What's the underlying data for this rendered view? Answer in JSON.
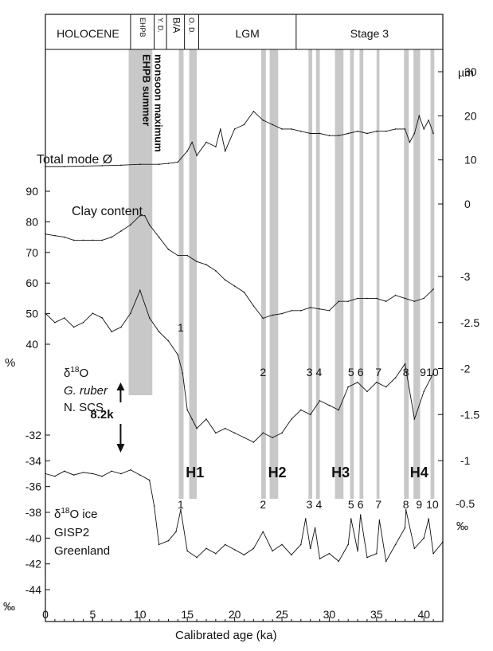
{
  "chart_data": {
    "type": "line",
    "xlabel": "Calibrated age (ka)",
    "xlim": [
      0,
      42
    ],
    "x_ticks": [
      0,
      5,
      10,
      15,
      20,
      25,
      30,
      35,
      40
    ],
    "periods": [
      {
        "label": "HOLOCENE",
        "from": 0,
        "to": 9
      },
      {
        "label": "EHPB",
        "from": 9,
        "to": 11.5
      },
      {
        "label": "Y. D.",
        "from": 11.5,
        "to": 12.8
      },
      {
        "label": "B/A",
        "from": 12.8,
        "to": 14.7
      },
      {
        "label": "O. D.",
        "from": 14.7,
        "to": 16.2
      },
      {
        "label": "LGM",
        "from": 16.2,
        "to": 26.5
      },
      {
        "label": "Stage 3",
        "from": 26.5,
        "to": 42
      }
    ],
    "monsoon_band": {
      "from": 8.8,
      "to": 11.3,
      "label_line1": "EHPB summer",
      "label_line2": "monsoon maximum"
    },
    "event_bands": [
      {
        "from": 14.1,
        "to": 14.6
      },
      {
        "from": 15.2,
        "to": 16.0
      },
      {
        "from": 22.8,
        "to": 23.3
      },
      {
        "from": 23.7,
        "to": 24.6
      },
      {
        "from": 27.8,
        "to": 28.2
      },
      {
        "from": 28.6,
        "to": 29.0
      },
      {
        "from": 30.6,
        "to": 31.5
      },
      {
        "from": 32.2,
        "to": 32.6
      },
      {
        "from": 33.2,
        "to": 33.6
      },
      {
        "from": 35.0,
        "to": 35.3
      },
      {
        "from": 37.9,
        "to": 38.4
      },
      {
        "from": 38.9,
        "to": 39.6
      },
      {
        "from": 40.7,
        "to": 41.1
      }
    ],
    "heinrich_events": [
      {
        "label": "H1",
        "x": 15.8
      },
      {
        "label": "H2",
        "x": 24.5
      },
      {
        "label": "H3",
        "x": 31.2
      },
      {
        "label": "H4",
        "x": 39.5
      }
    ],
    "interstadials_upper": [
      {
        "label": "1",
        "x": 14.3
      },
      {
        "label": "2",
        "x": 23.0
      },
      {
        "label": "3",
        "x": 27.9
      },
      {
        "label": "4",
        "x": 28.9
      },
      {
        "label": "5",
        "x": 32.3
      },
      {
        "label": "6",
        "x": 33.3
      },
      {
        "label": "7",
        "x": 35.2
      },
      {
        "label": "8",
        "x": 38.1
      },
      {
        "label": "9",
        "x": 39.9
      },
      {
        "label": "10",
        "x": 40.9
      }
    ],
    "interstadials_lower": [
      {
        "label": "1",
        "x": 14.3
      },
      {
        "label": "2",
        "x": 23.0
      },
      {
        "label": "3",
        "x": 27.9
      },
      {
        "label": "4",
        "x": 28.9
      },
      {
        "label": "5",
        "x": 32.3
      },
      {
        "label": "6",
        "x": 33.3
      },
      {
        "label": "7",
        "x": 35.2
      },
      {
        "label": "8",
        "x": 38.1
      },
      {
        "label": "9",
        "x": 39.5
      },
      {
        "label": "10",
        "x": 40.9
      }
    ],
    "event_82k": {
      "label": "8.2k",
      "x": 8.2
    },
    "axes": {
      "mode": {
        "unit": "µm",
        "ticks": [
          0,
          10,
          20,
          30
        ]
      },
      "clay": {
        "unit": "%",
        "ticks": [
          40,
          50,
          60,
          70,
          80,
          90
        ]
      },
      "ruber": {
        "unit": "",
        "ticks": [
          -3,
          -2.5,
          -2,
          -1.5,
          -1
        ]
      },
      "gisp": {
        "unit": "‰",
        "ticks": [
          -44,
          -42,
          -40,
          -38,
          -36,
          -34,
          -32
        ]
      },
      "gisp_right": {
        "unit": "‰",
        "ticks": [
          -0.5
        ]
      }
    },
    "series": [
      {
        "name": "Total mode Ø",
        "axis": "mode",
        "x": [
          0,
          2,
          4,
          6,
          8,
          10,
          12,
          13,
          14,
          15,
          15.5,
          16,
          17,
          18,
          18.5,
          19,
          20,
          21,
          22,
          23,
          24,
          25,
          26,
          27,
          28,
          29,
          30,
          31,
          32,
          33,
          34,
          35,
          36,
          37,
          38,
          38.5,
          39,
          39.5,
          40,
          40.5,
          41
        ],
        "y": [
          8.5,
          8.5,
          8.6,
          8.7,
          8.8,
          9,
          9,
          9.2,
          9.5,
          12,
          14,
          11,
          14,
          13,
          17,
          12,
          17,
          18,
          21,
          19,
          18,
          17,
          17,
          16.5,
          16,
          16,
          15.5,
          15.5,
          16,
          16.5,
          16,
          16.5,
          16.5,
          17,
          17,
          14,
          16,
          20,
          17,
          19,
          16
        ]
      },
      {
        "name": "Clay content",
        "axis": "clay",
        "x": [
          0,
          1,
          2,
          3,
          4,
          5,
          6,
          7,
          8,
          9,
          10,
          10.5,
          11,
          12,
          13,
          14,
          15,
          16,
          17,
          18,
          19,
          20,
          21,
          22,
          23,
          24,
          25,
          26,
          27,
          28,
          29,
          30,
          31,
          32,
          33,
          34,
          35,
          36,
          37,
          38,
          39,
          40,
          41
        ],
        "y": [
          76,
          75.5,
          75,
          74,
          74,
          74,
          74,
          75,
          77,
          79,
          82,
          82,
          79,
          75,
          71,
          69,
          69,
          67,
          66,
          64,
          61,
          59,
          57,
          52.5,
          48.5,
          49.5,
          50,
          51,
          51,
          52,
          51.5,
          51,
          54,
          54,
          55,
          55,
          55,
          54,
          56,
          55,
          54,
          55,
          58
        ]
      },
      {
        "name": "δ18O G. ruber N. SCS",
        "axis": "ruber",
        "x": [
          0,
          1,
          2,
          3,
          4,
          5,
          6,
          7,
          8,
          9,
          10,
          11,
          12,
          13,
          14,
          14.5,
          15,
          15.5,
          16,
          17,
          18,
          19,
          20,
          21,
          22,
          23,
          24,
          25,
          26,
          27,
          28,
          29,
          30,
          31,
          32,
          33,
          34,
          35,
          36,
          37,
          38,
          39,
          40,
          41
        ],
        "y": [
          -2.6,
          -2.5,
          -2.55,
          -2.45,
          -2.5,
          -2.6,
          -2.55,
          -2.4,
          -2.45,
          -2.6,
          -2.85,
          -2.55,
          -2.4,
          -2.3,
          -2.15,
          -1.95,
          -1.55,
          -1.45,
          -1.35,
          -1.45,
          -1.3,
          -1.35,
          -1.3,
          -1.25,
          -1.2,
          -1.3,
          -1.25,
          -1.3,
          -1.45,
          -1.55,
          -1.5,
          -1.65,
          -1.6,
          -1.55,
          -1.8,
          -1.85,
          -1.75,
          -1.85,
          -1.8,
          -1.9,
          -2.05,
          -1.45,
          -1.75,
          -1.95
        ]
      },
      {
        "name": "δ18O ice GISP2 Greenland",
        "axis": "gisp",
        "x": [
          0,
          1,
          2,
          3,
          4,
          5,
          6,
          7,
          8,
          9,
          10,
          11,
          11.5,
          12,
          13,
          13.8,
          14.3,
          15,
          16,
          17,
          18,
          19,
          20,
          21,
          22,
          23,
          24,
          25,
          26,
          27,
          27.5,
          28,
          28.5,
          29,
          30,
          31,
          32,
          32.3,
          33,
          33.3,
          34,
          35,
          35.3,
          36,
          37,
          38,
          38.1,
          39,
          40,
          40.5,
          41,
          42
        ],
        "y": [
          -35,
          -35.2,
          -34.8,
          -35.1,
          -34.9,
          -35,
          -35.2,
          -34.8,
          -35,
          -34.7,
          -35.1,
          -35.5,
          -37.5,
          -40.5,
          -40.2,
          -39.5,
          -37.8,
          -41,
          -41.5,
          -40.8,
          -41.2,
          -40.5,
          -40.9,
          -41.3,
          -40.8,
          -39.5,
          -41,
          -40.5,
          -41.3,
          -40.5,
          -38.5,
          -40.8,
          -39.2,
          -41.6,
          -41.2,
          -41.8,
          -40.5,
          -38.5,
          -41,
          -38.2,
          -41.5,
          -41.2,
          -38.6,
          -41.8,
          -40.5,
          -39.2,
          -37.8,
          -40.8,
          -40,
          -38.5,
          -41.2,
          -40.3
        ]
      }
    ],
    "text": {
      "label_mode": "Total mode Ø",
      "label_clay": "Clay content",
      "label_delta_ruber": "δ18O",
      "label_ruber_species": "G. ruber",
      "label_ruber_region": "N. SCS",
      "label_delta_ice": "δ18O ice",
      "label_gisp": "GISP2",
      "label_greenland": "Greenland",
      "unit_mode": "µm",
      "unit_clay": "%",
      "unit_gisp": "‰",
      "unit_gisp_right": "‰",
      "event_82k": "8.2k"
    }
  }
}
